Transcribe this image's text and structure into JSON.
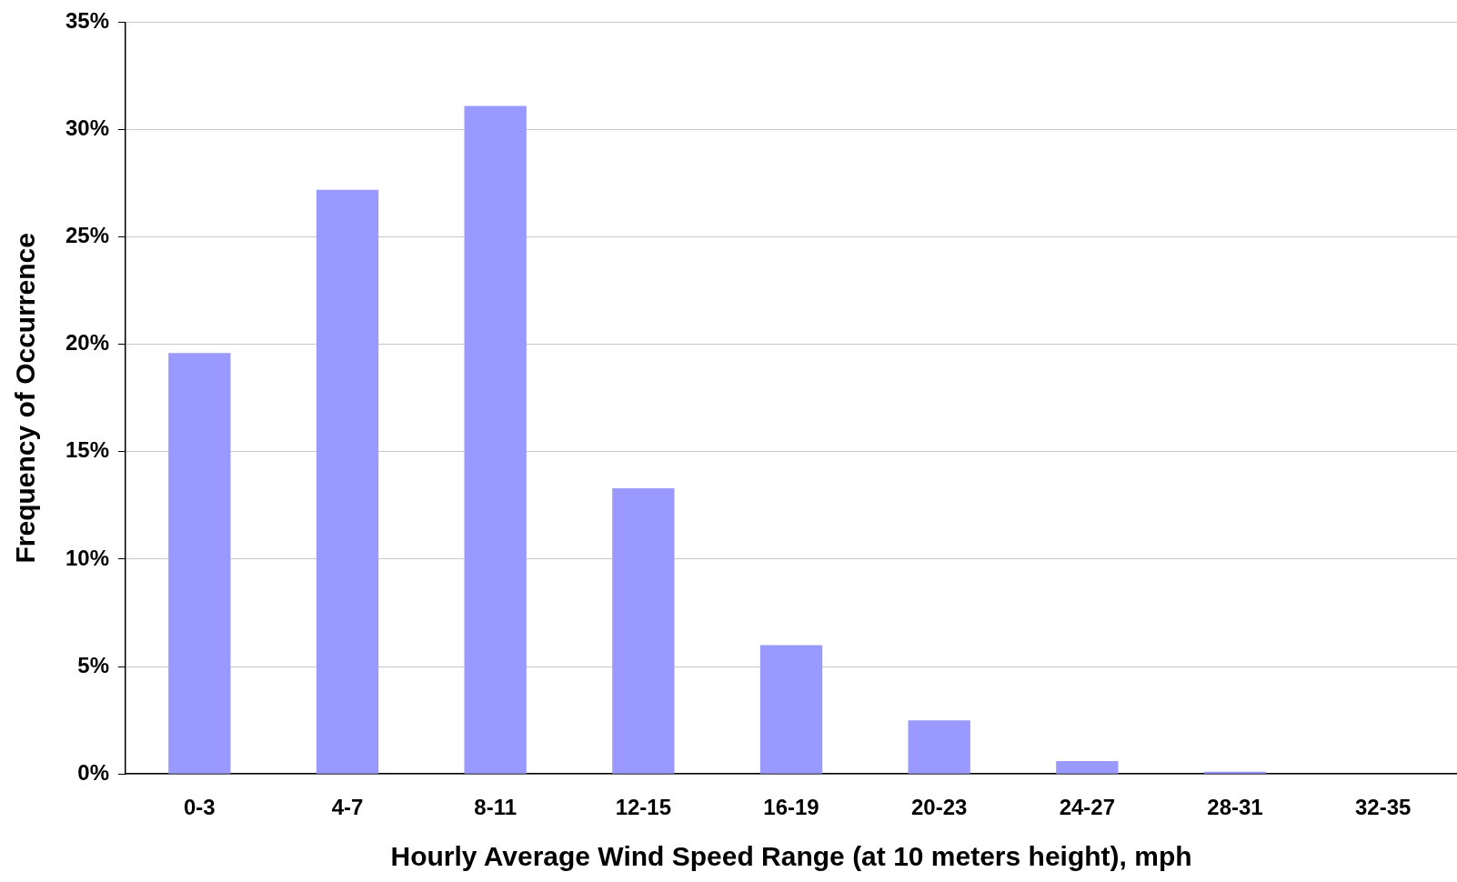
{
  "chart_data": {
    "type": "bar",
    "xlabel": "Hourly Average Wind Speed Range (at 10 meters height), mph",
    "ylabel": "Frequency of Occurrence",
    "categories": [
      "0-3",
      "4-7",
      "8-11",
      "12-15",
      "16-19",
      "20-23",
      "24-27",
      "28-31",
      "32-35"
    ],
    "series": [
      {
        "color": "#9999ff",
        "values": [
          19.6,
          27.2,
          31.1,
          13.3,
          6.0,
          2.5,
          0.6,
          0.1,
          0
        ]
      }
    ],
    "ylim": [
      0,
      35
    ],
    "yticks": [
      {
        "value": 0,
        "label": "0%"
      },
      {
        "value": 5,
        "label": "5%"
      },
      {
        "value": 10,
        "label": "10%"
      },
      {
        "value": 15,
        "label": "15%"
      },
      {
        "value": 20,
        "label": "20%"
      },
      {
        "value": 25,
        "label": "25%"
      },
      {
        "value": 30,
        "label": "30%"
      },
      {
        "value": 35,
        "label": "35%"
      }
    ],
    "grid": "y"
  }
}
